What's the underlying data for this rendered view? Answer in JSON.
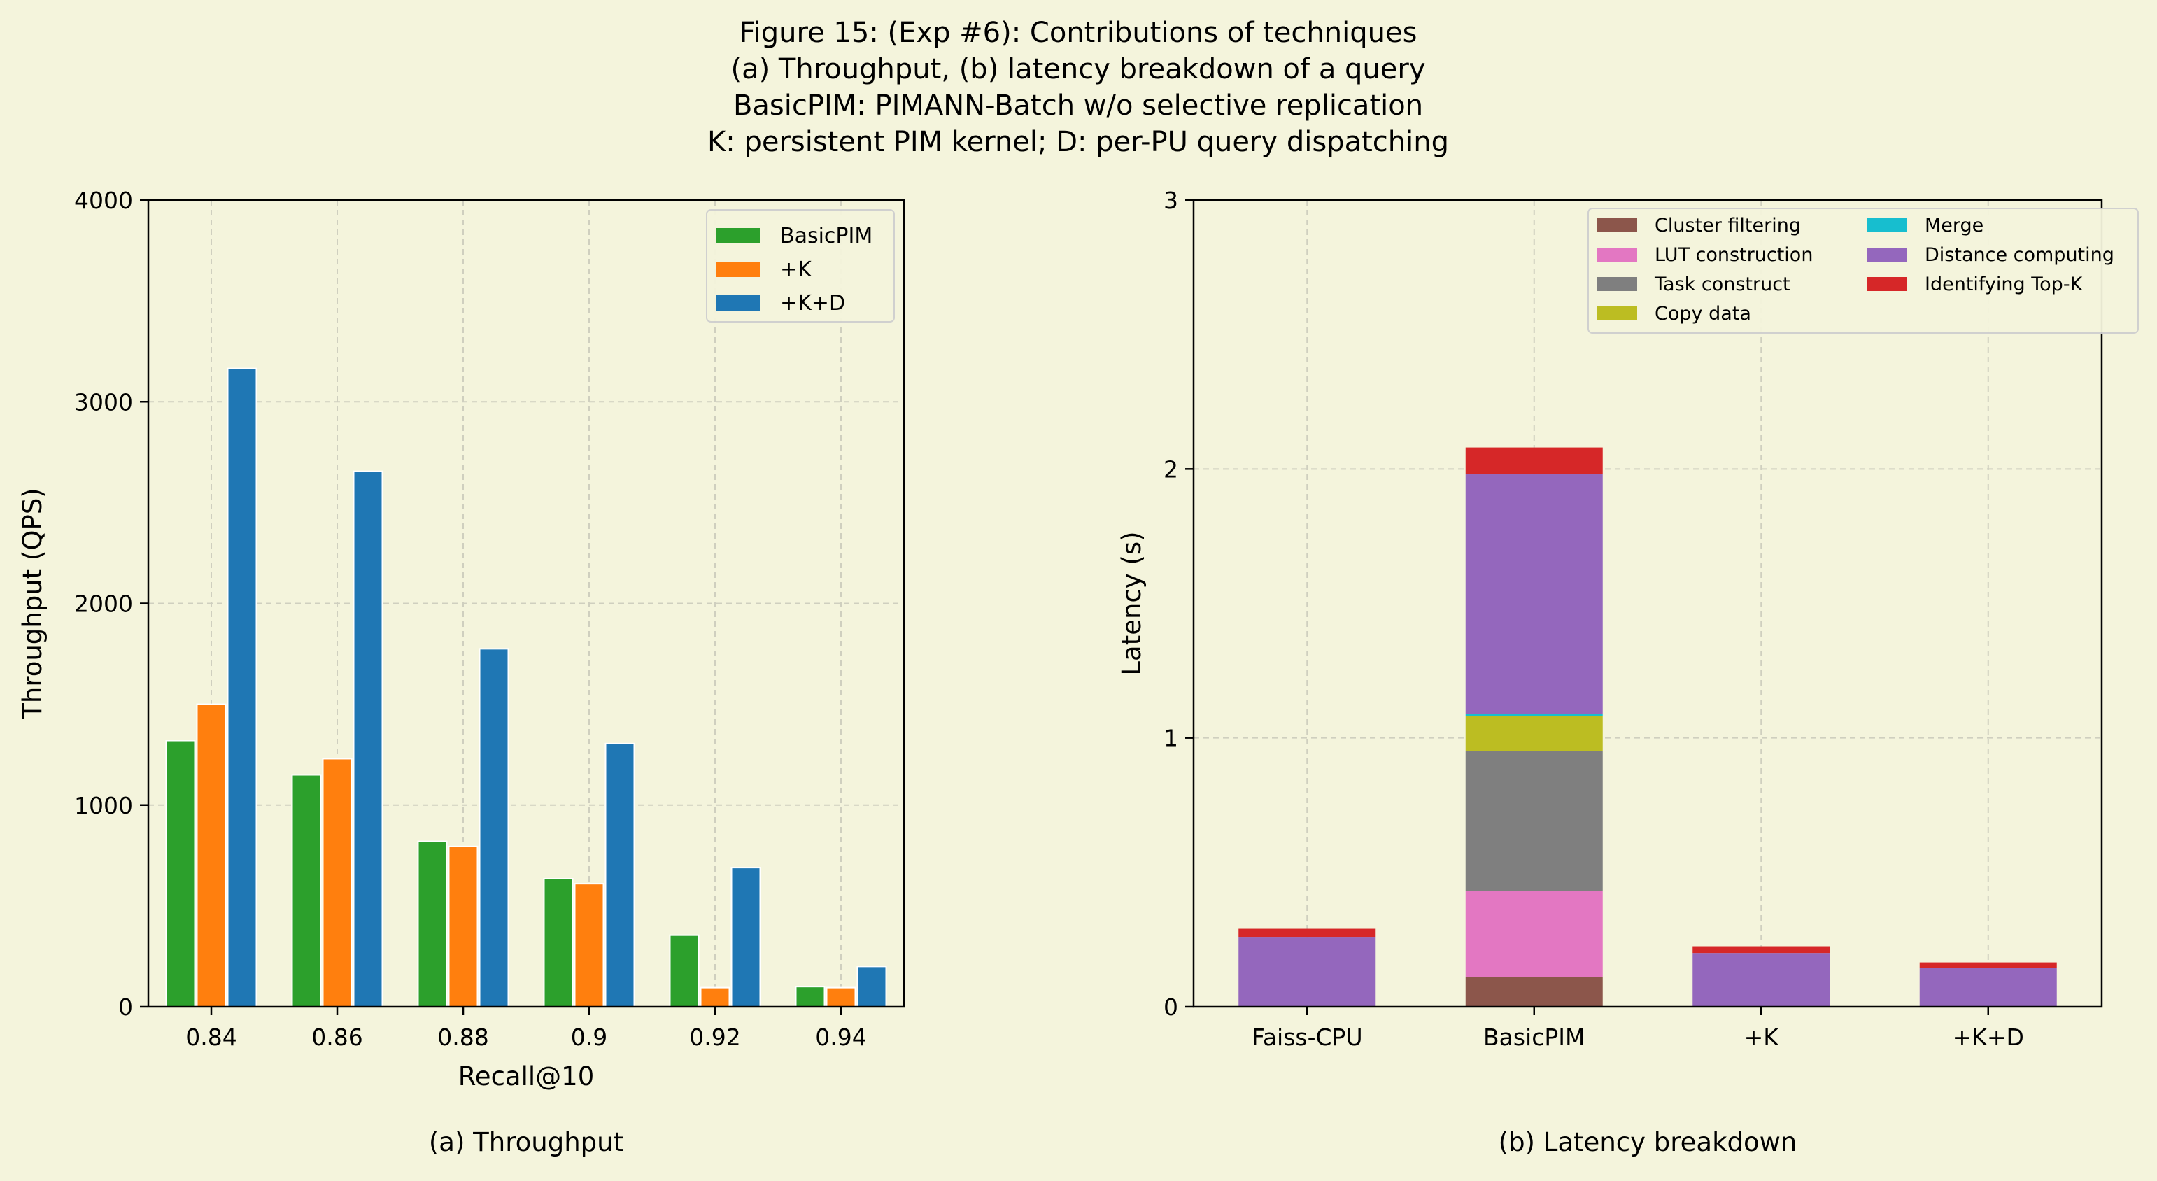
{
  "figure": {
    "title_lines": [
      "Figure 15: (Exp #6): Contributions of techniques",
      "(a) Throughput, (b) latency breakdown of a query",
      "BasicPIM: PIMANN-Batch w/o selective replication",
      "K: persistent PIM kernel; D: per-PU query dispatching"
    ],
    "background": "#f4f4dc"
  },
  "chart_data": [
    {
      "type": "bar",
      "caption": "(a) Throughput",
      "xlabel": "Recall@10",
      "ylabel": "Throughput (QPS)",
      "categories": [
        "0.84",
        "0.86",
        "0.88",
        "0.9",
        "0.92",
        "0.94"
      ],
      "ylim": [
        0,
        4000
      ],
      "yticks": [
        "0",
        "1000",
        "2000",
        "3000",
        "4000"
      ],
      "grid": true,
      "legend": "top-right",
      "series": [
        {
          "name": "BasicPIM",
          "color": "#2ca02c",
          "values": [
            1320,
            1150,
            820,
            635,
            355,
            100
          ]
        },
        {
          "name": "+K",
          "color": "#ff7f0e",
          "values": [
            1500,
            1230,
            795,
            610,
            95,
            95
          ]
        },
        {
          "name": "+K+D",
          "color": "#1f77b4",
          "values": [
            3165,
            2655,
            1775,
            1305,
            690,
            200
          ]
        }
      ]
    },
    {
      "type": "bar",
      "stacked": true,
      "caption": "(b) Latency breakdown",
      "xlabel": "",
      "ylabel": "Latency (s)",
      "categories": [
        "Faiss-CPU",
        "BasicPIM",
        "+K",
        "+K+D"
      ],
      "ylim": [
        0,
        3
      ],
      "yticks": [
        "0",
        "1",
        "2",
        "3"
      ],
      "grid": true,
      "legend": "top-right",
      "series": [
        {
          "name": "Cluster filtering",
          "color": "#8c564b",
          "values": [
            0,
            0.11,
            0,
            0
          ]
        },
        {
          "name": "LUT construction",
          "color": "#e377c2",
          "values": [
            0,
            0.32,
            0,
            0
          ]
        },
        {
          "name": "Task construct",
          "color": "#7f7f7f",
          "values": [
            0,
            0.52,
            0,
            0
          ]
        },
        {
          "name": "Copy data",
          "color": "#bcbd22",
          "values": [
            0,
            0.13,
            0,
            0
          ]
        },
        {
          "name": "Merge",
          "color": "#17becf",
          "values": [
            0,
            0.01,
            0,
            0
          ]
        },
        {
          "name": "Distance computing",
          "color": "#9467bd",
          "values": [
            0.26,
            0.89,
            0.2,
            0.145
          ]
        },
        {
          "name": "Identifying Top-K",
          "color": "#d62728",
          "values": [
            0.03,
            0.1,
            0.025,
            0.02
          ]
        }
      ]
    }
  ]
}
